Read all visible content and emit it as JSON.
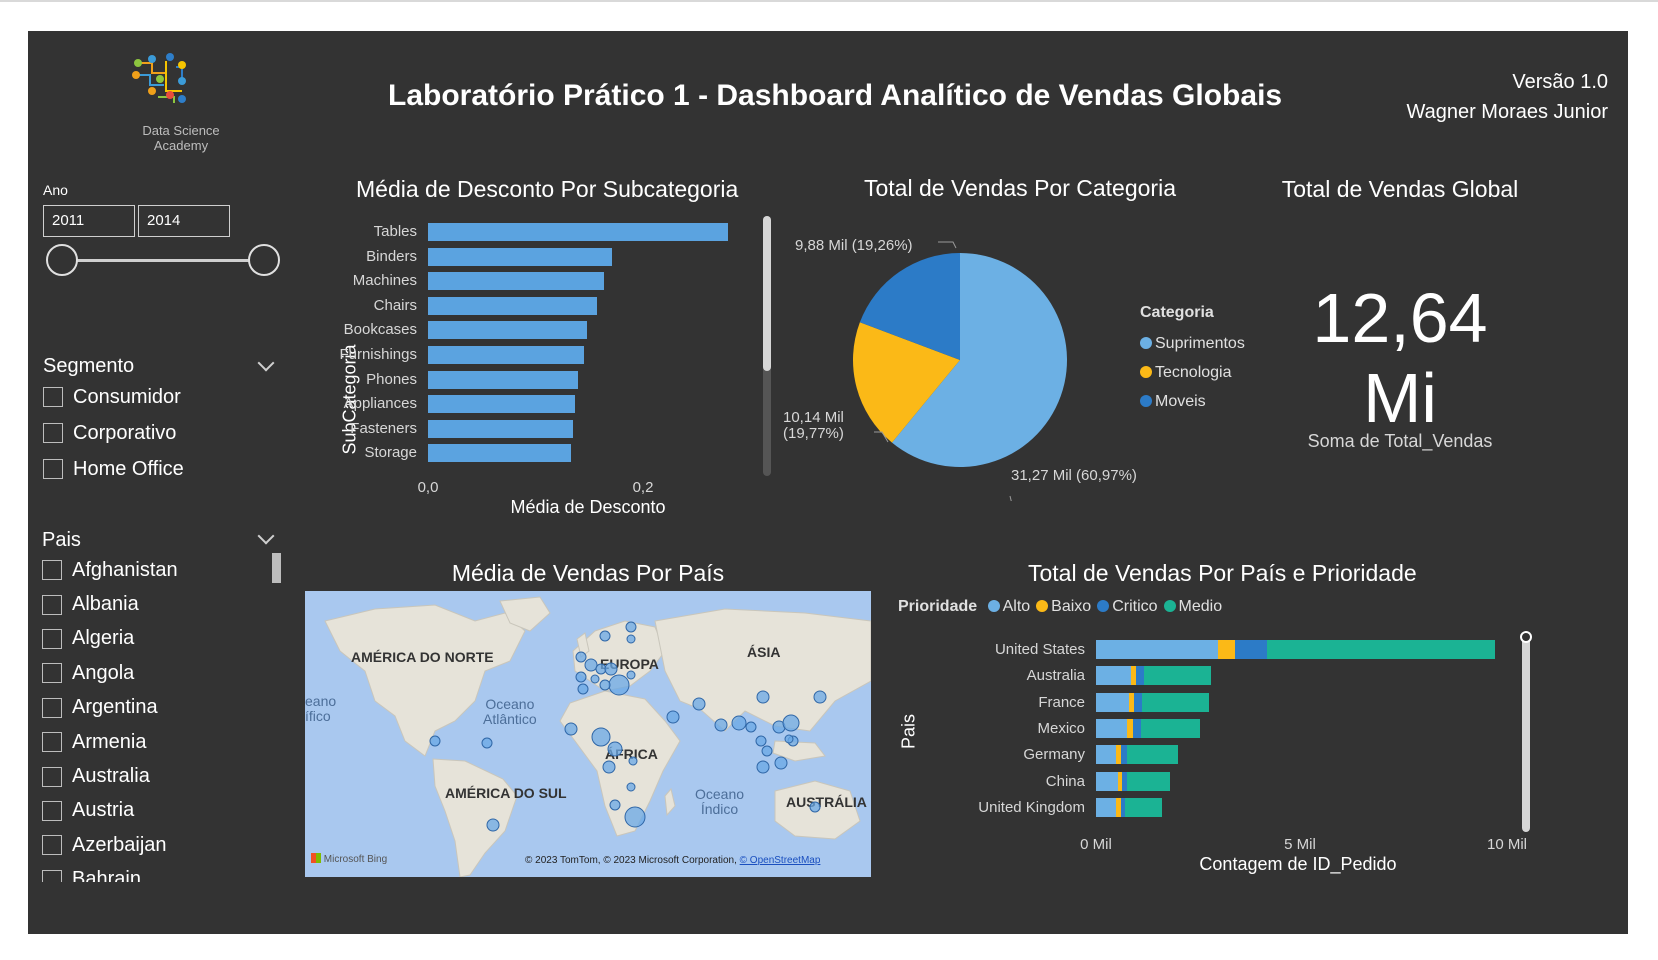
{
  "header": {
    "title": "Laboratório Prático 1 - Dashboard Analítico de Vendas Globais",
    "version": "Versão 1.0",
    "author": "Wagner Moraes Junior",
    "logo_line1": "Data Science",
    "logo_line2": "Academy"
  },
  "year_slicer": {
    "label": "Ano",
    "from": "2011",
    "to": "2014"
  },
  "segment_slicer": {
    "title": "Segmento",
    "options": [
      "Consumidor",
      "Corporativo",
      "Home Office"
    ]
  },
  "country_slicer": {
    "title": "Pais",
    "options": [
      "Afghanistan",
      "Albania",
      "Algeria",
      "Angola",
      "Argentina",
      "Armenia",
      "Australia",
      "Austria",
      "Azerbaijan",
      "Bahrain"
    ]
  },
  "discount_chart": {
    "title": "Média de Desconto Por Subcategoria",
    "ylabel": "SubCategoria",
    "xlabel": "Média de Desconto",
    "xticks": [
      "0,0",
      "0,2"
    ]
  },
  "category_chart": {
    "title": "Total de Vendas Por Categoria",
    "legend_title": "Categoria",
    "labels": [
      "9,88 Mil (19,26%)",
      "10,14 Mil",
      "(19,77%)",
      "31,27 Mil (60,97%)"
    ]
  },
  "kpi": {
    "title": "Total de Vendas Global",
    "value_number": "12,64",
    "value_unit": "Mi",
    "caption": "Soma de Total_Vendas"
  },
  "map": {
    "title": "Média de Vendas Por País",
    "continents": [
      "AMÉRICA DO NORTE",
      "EUROPA",
      "ÁSIA",
      "ÁFRICA",
      "AMÉRICA DO SUL",
      "AUSTRÁLIA"
    ],
    "oceans": [
      "Oceano",
      "Atlântico",
      "Oceano",
      "Índico",
      "eano",
      "ífico"
    ],
    "attribution_brand": "Microsoft Bing",
    "attribution": "© 2023 TomTom, © 2023 Microsoft Corporation,",
    "attribution_link": "© OpenStreetMap"
  },
  "priority_chart": {
    "title": "Total de Vendas Por País e Prioridade",
    "legend_title": "Prioridade",
    "ylabel": "Pais",
    "xlabel": "Contagem de ID_Pedido",
    "xticks": [
      "0 Mil",
      "5 Mil",
      "10 Mil"
    ]
  },
  "colors": {
    "blue_light": "#6cb0e4",
    "yellow": "#fbb917",
    "blue_dark": "#2c7bc7",
    "teal": "#1bb394",
    "bar": "#5ba3e0"
  },
  "chart_data": [
    {
      "type": "bar",
      "title": "Média de Desconto Por Subcategoria",
      "xlabel": "Média de Desconto",
      "ylabel": "SubCategoria",
      "categories": [
        "Tables",
        "Binders",
        "Machines",
        "Chairs",
        "Bookcases",
        "Furnishings",
        "Phones",
        "Appliances",
        "Fasteners",
        "Storage"
      ],
      "values": [
        0.29,
        0.178,
        0.17,
        0.164,
        0.154,
        0.151,
        0.145,
        0.142,
        0.14,
        0.138
      ],
      "xlim": [
        0,
        0.3
      ]
    },
    {
      "type": "pie",
      "title": "Total de Vendas Por Categoria",
      "categories": [
        "Suprimentos",
        "Tecnologia",
        "Moveis"
      ],
      "values": [
        31.27,
        10.14,
        9.88
      ],
      "unit": "Mil",
      "colors": [
        "#6cb0e4",
        "#fbb917",
        "#2c7bc7"
      ]
    },
    {
      "type": "bar",
      "stacked": true,
      "title": "Total de Vendas Por País e Prioridade",
      "xlabel": "Contagem de ID_Pedido",
      "ylabel": "Pais",
      "categories": [
        "United States",
        "Australia",
        "France",
        "Mexico",
        "Germany",
        "China",
        "United Kingdom"
      ],
      "series": [
        {
          "name": "Alto",
          "values": [
            3.0,
            0.85,
            0.8,
            0.75,
            0.5,
            0.55,
            0.5
          ]
        },
        {
          "name": "Baixo",
          "values": [
            0.4,
            0.12,
            0.12,
            0.15,
            0.12,
            0.1,
            0.12
          ]
        },
        {
          "name": "Critico",
          "values": [
            0.8,
            0.2,
            0.2,
            0.2,
            0.15,
            0.12,
            0.1
          ]
        },
        {
          "name": "Medio",
          "values": [
            5.6,
            1.65,
            1.65,
            1.45,
            1.25,
            1.05,
            0.9
          ]
        }
      ],
      "xlim": [
        0,
        10.5
      ]
    }
  ]
}
